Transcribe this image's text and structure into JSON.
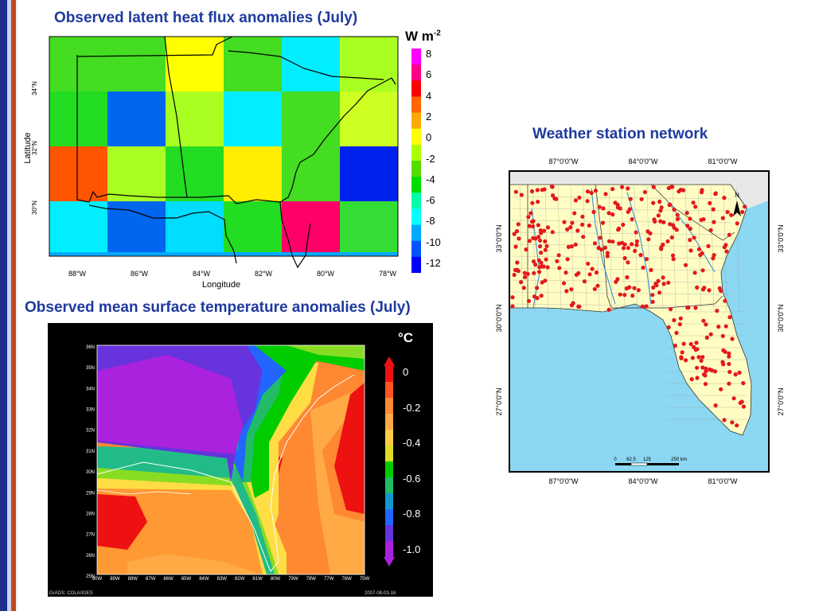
{
  "titles": {
    "heat_flux": "Observed latent heat flux anomalies (July)",
    "surface_temp": "Observed mean surface temperature anomalies (July)",
    "station_network": "Weather station network"
  },
  "heat_flux_map": {
    "unit_base": "W m",
    "unit_exp": "-2",
    "colorbar_labels": [
      "8",
      "6",
      "4",
      "2",
      "0",
      "-2",
      "-4",
      "-6",
      "-8",
      "-10",
      "-12"
    ],
    "colorbar_colors": [
      "#ff00ff",
      "#ff0088",
      "#ff0000",
      "#ff6600",
      "#ffaa00",
      "#ffff00",
      "#aaff00",
      "#55dd00",
      "#00dd00",
      "#00ffaa",
      "#00ffff",
      "#00aaff",
      "#0055ff",
      "#0000ff"
    ],
    "x_ticks": [
      "88°W",
      "86°W",
      "84°W",
      "82°W",
      "80°W",
      "78°W"
    ],
    "y_ticks": [
      "34°N",
      "32°N",
      "30°N"
    ],
    "x_label": "Longitude",
    "y_label": "Latitude",
    "grid_colors": [
      [
        "#44dd22",
        "#44dd22",
        "#ffff00",
        "#44dd22",
        "#00eeff",
        "#aaff22"
      ],
      [
        "#22dd22",
        "#0066ee",
        "#aaff22",
        "#00eeff",
        "#44dd22",
        "#ccff22"
      ],
      [
        "#ff5500",
        "#aaff22",
        "#22dd22",
        "#ffee00",
        "#44dd22",
        "#0022ee"
      ],
      [
        "#00eeff",
        "#0066ee",
        "#00ddff",
        "#22dd22",
        "#ff0066",
        "#33dd33"
      ]
    ]
  },
  "temp_map": {
    "unit": "°C",
    "colorbar_labels": [
      "0",
      "-0.2",
      "-0.4",
      "-0.6",
      "-0.8",
      "-1.0"
    ],
    "colorbar_colors": [
      "#ee1111",
      "#ff5522",
      "#ff8833",
      "#ffaa44",
      "#ffcc44",
      "#dddd22",
      "#00cc00",
      "#22bb66",
      "#1199cc",
      "#2266ff",
      "#6633dd",
      "#aa22dd"
    ],
    "x_ticks": [
      "90W",
      "89W",
      "88W",
      "87W",
      "86W",
      "85W",
      "84W",
      "83W",
      "82W",
      "81W",
      "80W",
      "79W",
      "78W",
      "77W",
      "76W",
      "75W"
    ],
    "y_ticks": [
      "36N",
      "35N",
      "34N",
      "33N",
      "32N",
      "31N",
      "30N",
      "29N",
      "28N",
      "27N",
      "26N",
      "25N"
    ],
    "footer_left": "GrADS: COLA/IGES",
    "footer_right": "2007-08-03-16"
  },
  "station_map": {
    "x_ticks": [
      "87°0'0\"W",
      "84°0'0\"W",
      "81°0'0\"W"
    ],
    "y_ticks": [
      "33°0'0\"N",
      "30°0'0\"N",
      "27°0'0\"N"
    ],
    "scale_labels": [
      "0",
      "62.5",
      "125",
      "250 km"
    ],
    "north_label": "N",
    "colors": {
      "ocean": "#8cd8f2",
      "land": "#fffdc4",
      "station": "#e3191c",
      "river": "#3c8ee0",
      "gray_land": "#e8e8e8"
    }
  }
}
